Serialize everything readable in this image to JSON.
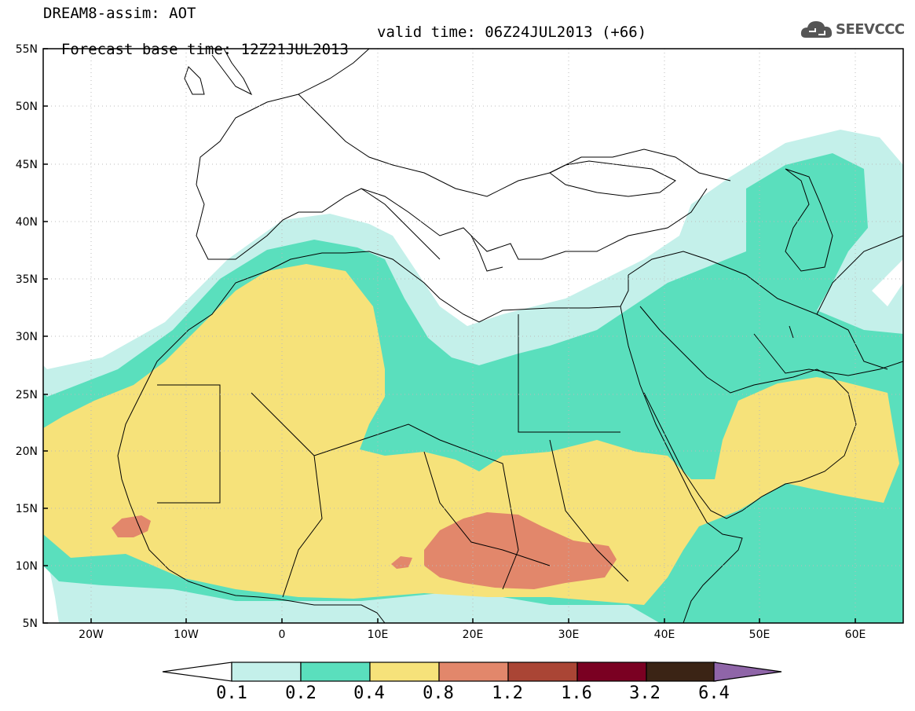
{
  "header": {
    "title": "DREAM8-assim: AOT",
    "base_time": "Forecast base time: 12Z21JUL2013",
    "valid_time": "valid time: 06Z24JUL2013 (+66)"
  },
  "logo": {
    "text": "SEEVCCC",
    "icon": "cloud-icon"
  },
  "axes": {
    "lat_labels": [
      "55N",
      "50N",
      "45N",
      "40N",
      "35N",
      "30N",
      "25N",
      "20N",
      "15N",
      "10N",
      "5N"
    ],
    "lon_labels": [
      "20W",
      "10W",
      "0",
      "10E",
      "20E",
      "30E",
      "40E",
      "50E",
      "60E"
    ]
  },
  "colorbar": {
    "labels": [
      "0.1",
      "0.2",
      "0.4",
      "0.8",
      "1.2",
      "1.6",
      "3.2",
      "6.4"
    ],
    "colors": [
      "#c4f0ea",
      "#5adfbd",
      "#f6e27a",
      "#e2876b",
      "#aa4535",
      "#7a0022",
      "#3b2415",
      "#8f65a8"
    ]
  }
}
